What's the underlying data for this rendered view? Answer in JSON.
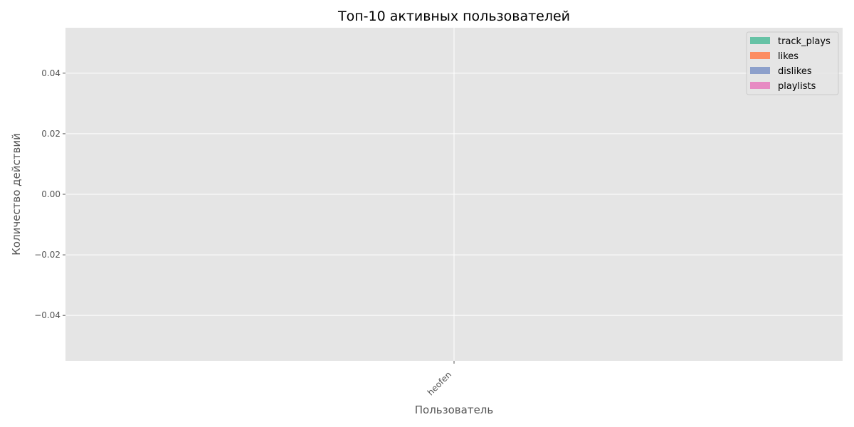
{
  "chart_data": {
    "type": "bar",
    "title": "Топ-10 активных пользователей",
    "xlabel": "Пользователь",
    "ylabel": "Количество действий",
    "categories": [
      "heofen"
    ],
    "series": [
      {
        "name": "track_plays",
        "values": [
          0
        ],
        "color": "#66c2a5"
      },
      {
        "name": "likes",
        "values": [
          0
        ],
        "color": "#fc8d62"
      },
      {
        "name": "dislikes",
        "values": [
          0
        ],
        "color": "#8da0cb"
      },
      {
        "name": "playlists",
        "values": [
          0
        ],
        "color": "#e78ac3"
      }
    ],
    "ylim": [
      -0.055,
      0.055
    ],
    "yticks": [
      "0.04",
      "0.02",
      "0.00",
      "−0.02",
      "−0.04"
    ],
    "ytick_values": [
      0.04,
      0.02,
      0.0,
      -0.02,
      -0.04
    ],
    "grid": true,
    "legend_position": "top-right",
    "plot_background": "#e5e5e5",
    "grid_color": "#ffffff"
  }
}
